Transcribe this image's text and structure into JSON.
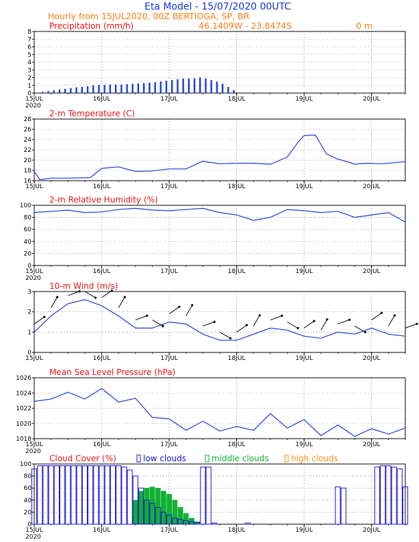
{
  "header": {
    "title": "Eta Model - 15/07/2020 00UTC",
    "subtitle": "Hourly from 15JUL2020, 00Z  BERTIOGA, SP, BR",
    "coords": "46.1409W - 23.8474S",
    "elevation": "0   m"
  },
  "colors": {
    "title": "#1030e0",
    "orange": "#ff7a10",
    "red": "#ee1111",
    "series": "#1a3ad8",
    "low": "#1010e0",
    "mid": "#10b030",
    "high": "#ff8c1a",
    "wind": "#000000"
  },
  "x_axis": {
    "day_labels": [
      "15JUL",
      "16JUL",
      "17JUL",
      "18JUL",
      "19JUL",
      "20JUL"
    ],
    "year_label": "2020",
    "hours_total": 132
  },
  "chart_data": [
    {
      "type": "bar",
      "title": "Precipitation (mm/h)",
      "ylim": [
        0,
        8
      ],
      "yticks": [
        "0",
        "1",
        "2",
        "3",
        "4",
        "5",
        "6",
        "7",
        "8"
      ],
      "grid": true,
      "x_hours": [
        3,
        5,
        7,
        9,
        11,
        13,
        15,
        17,
        19,
        21,
        23,
        25,
        27,
        29,
        31,
        33,
        35,
        37,
        39,
        41,
        43,
        45,
        47,
        49,
        51,
        53,
        55,
        57,
        59,
        61,
        63,
        65,
        67,
        69,
        71
      ],
      "values": [
        0.15,
        0.25,
        0.35,
        0.45,
        0.55,
        0.65,
        0.75,
        0.8,
        0.9,
        1.0,
        1.05,
        1.05,
        1.1,
        1.1,
        1.1,
        1.15,
        1.2,
        1.25,
        1.3,
        1.35,
        1.4,
        1.5,
        1.6,
        1.7,
        1.8,
        1.9,
        1.9,
        1.9,
        2.0,
        1.9,
        1.7,
        1.5,
        1.2,
        0.8,
        0.4
      ]
    },
    {
      "type": "line",
      "title": "2-m Temperature (C)",
      "ylim": [
        16,
        28
      ],
      "yticks": [
        "16",
        "18",
        "20",
        "22",
        "24",
        "26",
        "28"
      ],
      "grid": true,
      "x": [
        0,
        2,
        6,
        12,
        20,
        24,
        30,
        36,
        42,
        48,
        54,
        60,
        62,
        66,
        72,
        78,
        84,
        90,
        94,
        96,
        100,
        104,
        108,
        112,
        114,
        118,
        124,
        132
      ],
      "y": [
        17.8,
        16.2,
        16.5,
        16.5,
        16.6,
        18.4,
        18.7,
        17.8,
        17.9,
        18.3,
        18.3,
        19.8,
        19.6,
        19.3,
        19.4,
        19.4,
        19.2,
        20.6,
        23.6,
        24.8,
        24.9,
        21.2,
        20.2,
        19.6,
        19.2,
        19.4,
        19.3,
        19.7
      ]
    },
    {
      "type": "line",
      "title": "2-m Relative Humidity (%)",
      "ylim": [
        0,
        100
      ],
      "yticks": [
        "0",
        "20",
        "40",
        "60",
        "80",
        "100"
      ],
      "grid": true,
      "x": [
        0,
        6,
        12,
        18,
        24,
        30,
        36,
        42,
        48,
        54,
        60,
        66,
        72,
        78,
        84,
        90,
        96,
        102,
        108,
        114,
        120,
        126,
        132
      ],
      "y": [
        88,
        90,
        92,
        88,
        89,
        93,
        95,
        92,
        91,
        93,
        95,
        88,
        84,
        75,
        80,
        93,
        91,
        88,
        90,
        80,
        84,
        88,
        72
      ]
    },
    {
      "type": "line",
      "title": "10-m Wind (m/s)",
      "ylim": [
        0,
        3
      ],
      "yticks": [
        "0",
        "1",
        "2",
        "3"
      ],
      "grid": true,
      "x": [
        0,
        6,
        12,
        18,
        24,
        30,
        36,
        42,
        48,
        54,
        60,
        66,
        72,
        78,
        84,
        90,
        96,
        102,
        108,
        114,
        120,
        126,
        132
      ],
      "y": [
        1.0,
        1.8,
        2.4,
        2.6,
        2.3,
        1.8,
        1.2,
        1.2,
        1.5,
        1.4,
        0.9,
        0.6,
        0.6,
        0.9,
        1.2,
        1.1,
        0.8,
        0.7,
        1.0,
        0.9,
        1.2,
        0.9,
        0.8
      ]
    },
    {
      "type": "line",
      "title": "Mean Sea Level Pressure (hPa)",
      "ylim": [
        1018,
        1026
      ],
      "yticks": [
        "1018",
        "1020",
        "1022",
        "1024",
        "1026"
      ],
      "grid": true,
      "x": [
        0,
        6,
        12,
        18,
        24,
        30,
        36,
        42,
        48,
        54,
        60,
        66,
        72,
        78,
        84,
        90,
        96,
        102,
        108,
        114,
        120,
        126,
        132
      ],
      "y": [
        1022.9,
        1023.2,
        1024.1,
        1023.2,
        1024.6,
        1022.8,
        1023.3,
        1020.8,
        1020.6,
        1019.1,
        1020.3,
        1019.0,
        1019.6,
        1019.1,
        1021.3,
        1019.4,
        1020.5,
        1018.4,
        1019.8,
        1018.3,
        1019.3,
        1018.6,
        1019.4
      ]
    },
    {
      "type": "bar",
      "title": "Cloud Cover (%)",
      "ylim": [
        0,
        100
      ],
      "yticks": [
        "0",
        "20",
        "40",
        "60",
        "80",
        "100"
      ],
      "grid": true,
      "legend": [
        "low clouds",
        "middle clouds",
        "high clouds"
      ],
      "low_hours": [
        0,
        2,
        4,
        6,
        8,
        10,
        12,
        14,
        16,
        18,
        20,
        22,
        24,
        26,
        28,
        30,
        32,
        34,
        36,
        38,
        40,
        42,
        44,
        46,
        48,
        50,
        52,
        54,
        56,
        58,
        60,
        62,
        64,
        66,
        68,
        70,
        72,
        74,
        76,
        78,
        80,
        82,
        84,
        86,
        88,
        90,
        92,
        94,
        96,
        98,
        100,
        102,
        104,
        106,
        108,
        110,
        112,
        114,
        116,
        118,
        120,
        122,
        124,
        126,
        128,
        130,
        132
      ],
      "low_values": [
        92,
        97,
        97,
        97,
        97,
        97,
        97,
        97,
        97,
        97,
        97,
        97,
        97,
        97,
        97,
        97,
        95,
        90,
        80,
        60,
        40,
        35,
        28,
        20,
        15,
        10,
        8,
        6,
        4,
        3,
        95,
        95,
        2,
        0,
        0,
        0,
        0,
        0,
        2,
        0,
        0,
        0,
        0,
        0,
        0,
        0,
        0,
        0,
        0,
        0,
        0,
        0,
        0,
        0,
        62,
        60,
        0,
        0,
        0,
        0,
        0,
        95,
        97,
        97,
        95,
        92,
        62
      ],
      "mid_values": [
        0,
        0,
        0,
        0,
        0,
        0,
        0,
        0,
        0,
        0,
        0,
        0,
        0,
        0,
        0,
        0,
        0,
        0,
        40,
        55,
        60,
        62,
        60,
        55,
        50,
        40,
        28,
        18,
        10,
        4,
        0,
        0,
        0,
        0,
        0,
        0,
        0,
        0,
        0,
        0,
        0,
        0,
        0,
        0,
        0,
        0,
        0,
        0,
        0,
        0,
        0,
        0,
        0,
        0,
        0,
        0,
        0,
        0,
        0,
        0,
        0,
        0,
        0,
        0,
        0,
        0,
        0
      ]
    }
  ]
}
